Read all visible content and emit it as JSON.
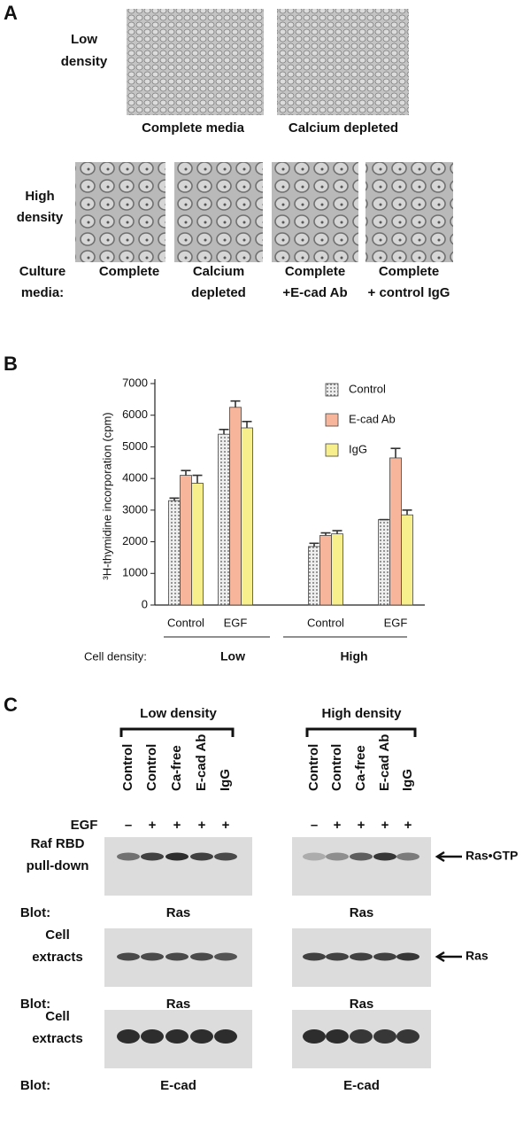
{
  "panel_a": {
    "label": "A",
    "low_density": [
      "Low",
      "density"
    ],
    "low_captions": [
      "Complete media",
      "Calcium depleted"
    ],
    "high_density": [
      "High",
      "density"
    ],
    "culture_media": [
      "Culture",
      "media:"
    ],
    "high_captions": [
      [
        "Complete"
      ],
      [
        "Calcium",
        "depleted"
      ],
      [
        "Complete",
        "+E-cad Ab"
      ],
      [
        "Complete",
        "+ control IgG"
      ]
    ]
  },
  "panel_b_label": "B",
  "chart_data": {
    "type": "bar",
    "y_label": "³H-thymidine incorporation (cpm)",
    "categories": [
      "Control",
      "EGF",
      "Control",
      "EGF"
    ],
    "group_title": "Cell density:",
    "groups": [
      "Low",
      "High"
    ],
    "series": [
      {
        "name": "Control",
        "color": "#d9d9d9",
        "values": [
          3300,
          5400,
          1850,
          2700
        ],
        "errors": [
          80,
          150,
          100,
          0
        ]
      },
      {
        "name": "E-cad Ab",
        "color": "#f7b69b",
        "values": [
          4100,
          6250,
          2200,
          4650
        ],
        "errors": [
          150,
          200,
          80,
          300
        ]
      },
      {
        "name": "IgG",
        "color": "#f7ef8c",
        "values": [
          3850,
          5600,
          2250,
          2850
        ],
        "errors": [
          250,
          200,
          100,
          150
        ]
      }
    ],
    "ylim": [
      0,
      7000
    ],
    "yticks": [
      0,
      1000,
      2000,
      3000,
      4000,
      5000,
      6000,
      7000
    ],
    "legend": "top-right"
  },
  "panel_c": {
    "label": "C",
    "egf_label": "EGF",
    "sides": [
      {
        "header": "Low density",
        "lanes": [
          "Control",
          "Control",
          "Ca-free",
          "E-cad Ab",
          "IgG"
        ],
        "egf": [
          "–",
          "+",
          "+",
          "+",
          "+"
        ],
        "blots": [
          "Ras",
          "Ras",
          "E-cad"
        ]
      },
      {
        "header": "High density",
        "lanes": [
          "Control",
          "Control",
          "Ca-free",
          "E-cad Ab",
          "IgG"
        ],
        "egf": [
          "–",
          "+",
          "+",
          "+",
          "+"
        ],
        "blots": [
          "Ras",
          "Ras",
          "E-cad"
        ]
      }
    ],
    "rows": [
      {
        "label": [
          "Raf RBD",
          "pull-down"
        ],
        "blot": "Blot:"
      },
      {
        "label": [
          "Cell",
          "extracts"
        ],
        "blot": "Blot:"
      },
      {
        "label": [
          "Cell",
          "extracts"
        ],
        "blot": "Blot:"
      }
    ],
    "arrows": [
      "Ras•GTP",
      "Ras"
    ]
  }
}
